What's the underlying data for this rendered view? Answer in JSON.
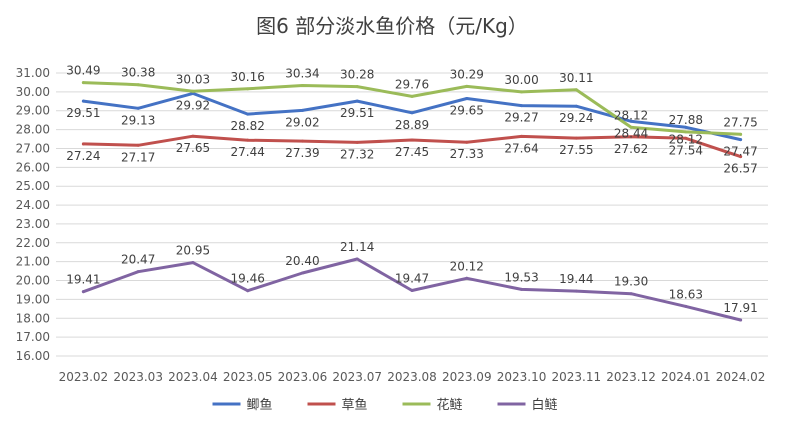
{
  "chart_data": {
    "type": "line",
    "title": "图6  部分淡水鱼价格（元/Kg）",
    "xlabel": "",
    "ylabel": "",
    "categories": [
      "2023.02",
      "2023.03",
      "2023.04",
      "2023.05",
      "2023.06",
      "2023.07",
      "2023.08",
      "2023.09",
      "2023.10",
      "2023.11",
      "2023.12",
      "2024.01",
      "2024.02"
    ],
    "ylim": [
      16,
      31
    ],
    "yticks": [
      "16.00",
      "17.00",
      "18.00",
      "19.00",
      "20.00",
      "21.00",
      "22.00",
      "23.00",
      "24.00",
      "25.00",
      "26.00",
      "27.00",
      "28.00",
      "29.00",
      "30.00",
      "31.00"
    ],
    "grid": true,
    "legend_position": "bottom",
    "series": [
      {
        "name": "鲫鱼",
        "color": "#4472c4",
        "values": [
          29.51,
          29.13,
          29.92,
          28.82,
          29.02,
          29.51,
          28.89,
          29.65,
          29.27,
          29.24,
          28.44,
          28.12,
          27.47
        ],
        "labels": [
          "29.51",
          "29.13",
          "29.92",
          "28.82",
          "29.02",
          "29.51",
          "28.89",
          "29.65",
          "29.27",
          "29.24",
          "28.44",
          "28.12",
          "27.47"
        ]
      },
      {
        "name": "草鱼",
        "color": "#c0504d",
        "values": [
          27.24,
          27.17,
          27.65,
          27.44,
          27.39,
          27.32,
          27.45,
          27.33,
          27.64,
          27.55,
          27.62,
          27.54,
          26.57
        ],
        "labels": [
          "27.24",
          "27.17",
          "27.65",
          "27.44",
          "27.39",
          "27.32",
          "27.45",
          "27.33",
          "27.64",
          "27.55",
          "27.62",
          "27.54",
          "26.57"
        ]
      },
      {
        "name": "花鲢",
        "color": "#9bbb59",
        "values": [
          30.49,
          30.38,
          30.03,
          30.16,
          30.34,
          30.28,
          29.76,
          30.29,
          30.0,
          30.11,
          28.12,
          27.88,
          27.75
        ],
        "labels": [
          "30.49",
          "30.38",
          "30.03",
          "30.16",
          "30.34",
          "30.28",
          "29.76",
          "30.29",
          "30.00",
          "30.11",
          "28.12",
          "27.88",
          "27.75"
        ]
      },
      {
        "name": "白鲢",
        "color": "#8064a2",
        "values": [
          19.41,
          20.47,
          20.95,
          19.46,
          20.4,
          21.14,
          19.47,
          20.12,
          19.53,
          19.44,
          19.3,
          18.63,
          17.91
        ],
        "labels": [
          "19.41",
          "20.47",
          "20.95",
          "19.46",
          "20.40",
          "21.14",
          "19.47",
          "20.12",
          "19.53",
          "19.44",
          "19.30",
          "18.63",
          "17.91"
        ]
      }
    ]
  }
}
